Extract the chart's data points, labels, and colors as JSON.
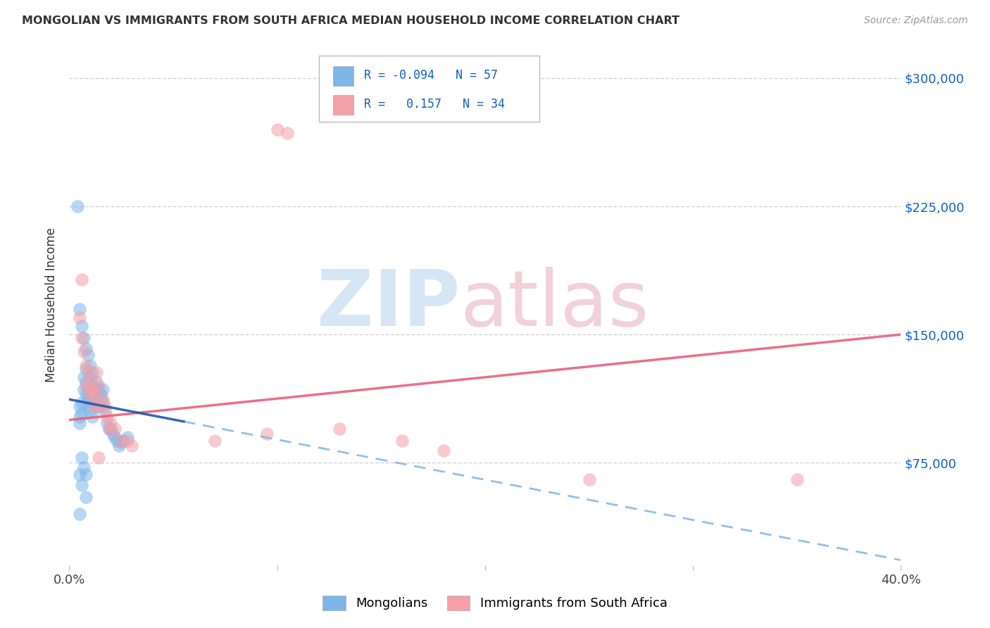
{
  "title": "MONGOLIAN VS IMMIGRANTS FROM SOUTH AFRICA MEDIAN HOUSEHOLD INCOME CORRELATION CHART",
  "source": "Source: ZipAtlas.com",
  "ylabel": "Median Household Income",
  "yticks": [
    75000,
    150000,
    225000,
    300000
  ],
  "ytick_labels": [
    "$75,000",
    "$150,000",
    "$225,000",
    "$300,000"
  ],
  "xmin": 0.0,
  "xmax": 0.4,
  "ymin": 15000,
  "ymax": 320000,
  "mongolian_color": "#7EB6E8",
  "sa_color": "#F4A0A8",
  "trend_mongolian_solid_color": "#2255AA",
  "trend_mongolian_dash_color": "#7EB6E8",
  "trend_sa_color": "#E8607A",
  "background_color": "#FFFFFF",
  "grid_color": "#C8C8C8",
  "legend_R_color": "#1060C0",
  "mongolian_x": [
    0.005,
    0.005,
    0.005,
    0.006,
    0.006,
    0.007,
    0.007,
    0.008,
    0.008,
    0.008,
    0.009,
    0.009,
    0.009,
    0.01,
    0.01,
    0.01,
    0.011,
    0.011,
    0.011,
    0.012,
    0.012,
    0.013,
    0.013,
    0.014,
    0.014,
    0.015,
    0.015,
    0.016,
    0.016,
    0.017,
    0.018,
    0.019,
    0.02,
    0.021,
    0.022,
    0.023,
    0.024,
    0.025,
    0.026,
    0.028,
    0.004,
    0.005,
    0.006,
    0.007,
    0.008,
    0.009,
    0.01,
    0.011,
    0.013,
    0.015,
    0.006,
    0.007,
    0.008,
    0.005,
    0.006,
    0.008,
    0.005
  ],
  "mongolian_y": [
    108000,
    102000,
    98000,
    110000,
    104000,
    125000,
    118000,
    130000,
    122000,
    115000,
    112000,
    108000,
    118000,
    125000,
    115000,
    105000,
    120000,
    110000,
    102000,
    118000,
    112000,
    122000,
    108000,
    118000,
    108000,
    115000,
    108000,
    118000,
    110000,
    105000,
    98000,
    95000,
    95000,
    92000,
    90000,
    88000,
    85000,
    87000,
    88000,
    90000,
    225000,
    165000,
    155000,
    148000,
    142000,
    138000,
    132000,
    128000,
    118000,
    112000,
    78000,
    72000,
    68000,
    68000,
    62000,
    55000,
    45000
  ],
  "sa_x": [
    0.005,
    0.006,
    0.007,
    0.008,
    0.009,
    0.01,
    0.011,
    0.012,
    0.013,
    0.014,
    0.015,
    0.016,
    0.017,
    0.018,
    0.019,
    0.02,
    0.022,
    0.025,
    0.028,
    0.03,
    0.006,
    0.008,
    0.01,
    0.012,
    0.014,
    0.1,
    0.105,
    0.25,
    0.35,
    0.18,
    0.16,
    0.13,
    0.095,
    0.07
  ],
  "sa_y": [
    160000,
    148000,
    140000,
    132000,
    128000,
    122000,
    118000,
    115000,
    128000,
    120000,
    108000,
    112000,
    108000,
    102000,
    95000,
    98000,
    95000,
    88000,
    88000,
    85000,
    182000,
    120000,
    115000,
    108000,
    78000,
    270000,
    268000,
    65000,
    65000,
    82000,
    88000,
    95000,
    92000,
    88000
  ],
  "trend_mong_x0": 0.0,
  "trend_mong_y0": 112000,
  "trend_mong_x1": 0.4,
  "trend_mong_y1": 18000,
  "trend_mong_solid_end": 0.055,
  "trend_sa_x0": 0.0,
  "trend_sa_y0": 100000,
  "trend_sa_x1": 0.4,
  "trend_sa_y1": 150000
}
